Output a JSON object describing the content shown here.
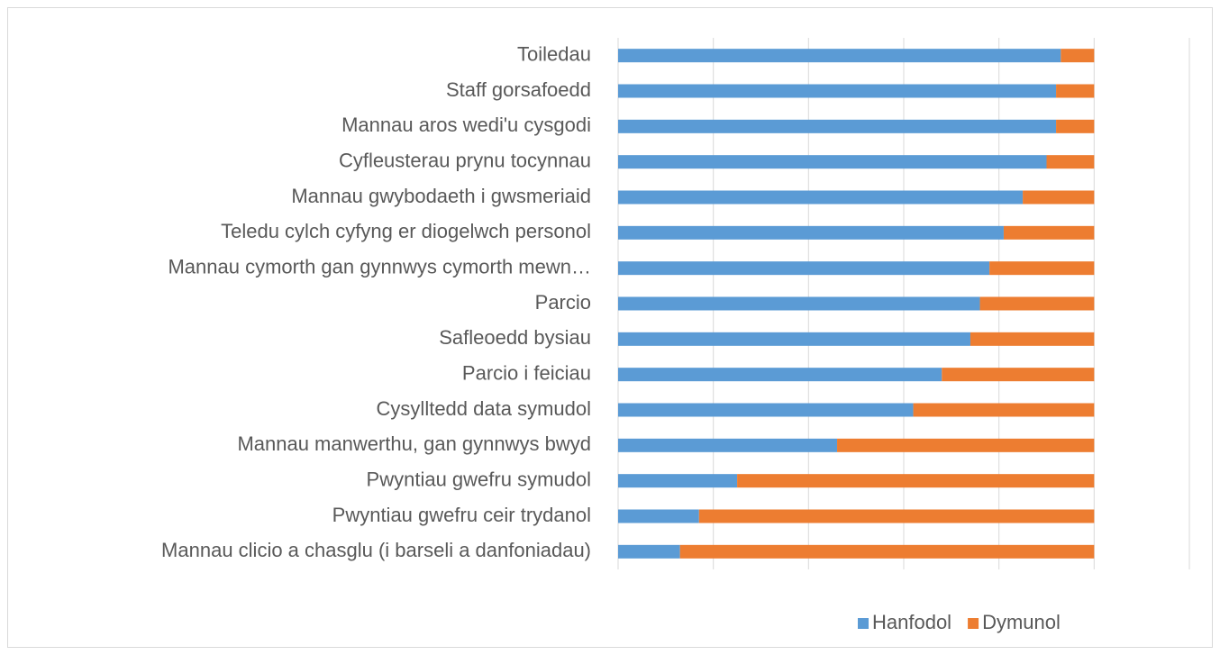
{
  "chart_data": {
    "type": "stacked_barh",
    "categories": [
      "Toiledau",
      "Staff gorsafoedd",
      "Mannau aros wedi'u cysgodi",
      "Cyfleusterau prynu tocynnau",
      "Mannau gwybodaeth i gwsmeriaid",
      "Teledu cylch cyfyng er diogelwch personol",
      "Mannau cymorth gan gynnwys cymorth mewn…",
      "Parcio",
      "Safleoedd bysiau",
      "Parcio i feiciau",
      "Cysylltedd data symudol",
      "Mannau manwerthu, gan gynnwys bwyd",
      "Pwyntiau gwefru symudol",
      "Pwyntiau gwefru ceir trydanol",
      "Mannau clicio a chasglu (i barseli a danfoniadau)"
    ],
    "series": [
      {
        "name": "Hanfodol",
        "color": "#5b9bd5",
        "values": [
          93,
          92,
          92,
          90,
          85,
          81,
          78,
          76,
          74,
          68,
          62,
          46,
          25,
          17,
          13
        ]
      },
      {
        "name": "Dymunol",
        "color": "#ed7d31",
        "values": [
          7,
          8,
          8,
          10,
          15,
          19,
          22,
          24,
          26,
          32,
          38,
          54,
          75,
          83,
          87
        ]
      }
    ],
    "xlim": [
      0,
      120
    ],
    "xticks": [
      0,
      20,
      40,
      60,
      80,
      100,
      120
    ],
    "grid": true,
    "legend": "bottom"
  }
}
